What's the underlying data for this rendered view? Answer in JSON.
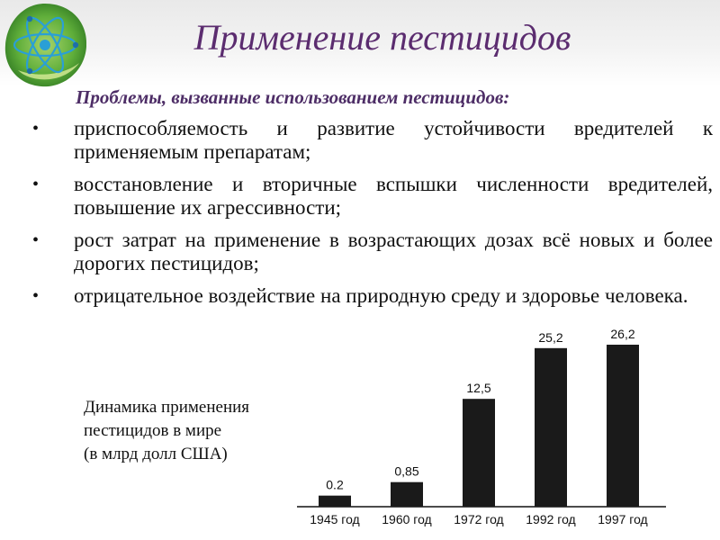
{
  "slide": {
    "title": "Применение пестицидов",
    "subtitle": "Проблемы, вызванные использованием пестицидов:",
    "bullets": [
      "приспособляемость и развитие устойчивости вредителей к применяемым препаратам;",
      "восстановление и вторичные вспышки численности вредителей, повышение их агрессивности;",
      "рост затрат на применение в возрастающих дозах всё новых и более дорогих пестицидов;",
      "отрицательное воздействие на природную среду и здоровье человека."
    ],
    "bullet_symbol": "•",
    "caption_lines": [
      "Динамика применения",
      "пестицидов в мире",
      "(в млрд долл США)"
    ],
    "logo_icon": "atom-leaf-logo-icon",
    "colors": {
      "title": "#5b2c6f",
      "subtitle": "#4d2d66",
      "bars": "#1a1a1a"
    }
  },
  "chart_data": {
    "type": "bar",
    "categories": [
      "1945 год",
      "1960 год",
      "1972 год",
      "1992 год",
      "1997 год"
    ],
    "values": [
      0.2,
      0.85,
      12.5,
      25.2,
      26.2
    ],
    "value_labels": [
      "0.2",
      "0,85",
      "12,5",
      "25,2",
      "26,2"
    ],
    "title": "",
    "xlabel": "",
    "ylabel": "",
    "grid": false,
    "scale_note": "bar heights are not drawn to a linear scale"
  }
}
